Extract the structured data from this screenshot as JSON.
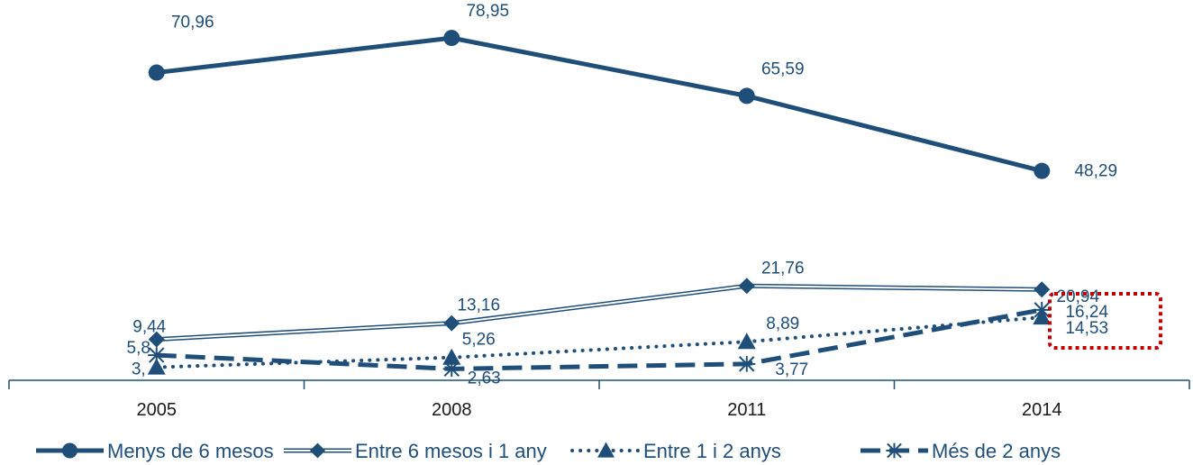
{
  "chart_data": {
    "type": "line",
    "categories": [
      "2005",
      "2008",
      "2011",
      "2014"
    ],
    "series": [
      {
        "name": "Menys de 6 mesos",
        "values": [
          70.96,
          78.95,
          65.59,
          48.29
        ],
        "labels": [
          "70,96",
          "78,95",
          "65,59",
          "48,29"
        ],
        "marker": "circle",
        "style": "solid"
      },
      {
        "name": "Entre 6 mesos i 1 any",
        "values": [
          9.44,
          13.16,
          21.76,
          20.94
        ],
        "labels": [
          "9,44",
          "13,16",
          "21,76",
          "20,94"
        ],
        "marker": "diamond",
        "style": "double"
      },
      {
        "name": "Entre 1 i 2 anys",
        "values": [
          3.0,
          5.26,
          8.89,
          14.53
        ],
        "labels": [
          "3,",
          "5,26",
          "8,89",
          "14,53"
        ],
        "marker": "triangle",
        "style": "dotted"
      },
      {
        "name": "Més de 2 anys",
        "values": [
          5.8,
          2.63,
          3.77,
          16.24
        ],
        "labels": [
          "5,8",
          "2,63",
          "3,77",
          "16,24"
        ],
        "marker": "asterisk",
        "style": "dashed"
      }
    ],
    "ylim": [
      0,
      85
    ],
    "grid": false,
    "legend_position": "bottom",
    "highlight_category": "2014",
    "colors": {
      "line": "#1f4e79",
      "axis": "#1f4e79",
      "highlight": "#c00000"
    }
  }
}
